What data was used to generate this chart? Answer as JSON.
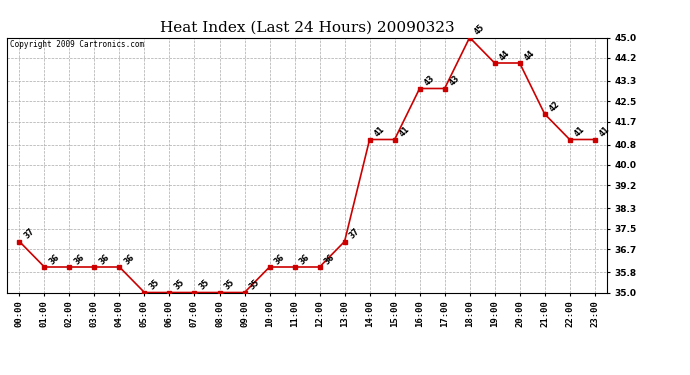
{
  "title": "Heat Index (Last 24 Hours) 20090323",
  "copyright": "Copyright 2009 Cartronics.com",
  "hours": [
    "00:00",
    "01:00",
    "02:00",
    "03:00",
    "04:00",
    "05:00",
    "06:00",
    "07:00",
    "08:00",
    "09:00",
    "10:00",
    "11:00",
    "12:00",
    "13:00",
    "14:00",
    "15:00",
    "16:00",
    "17:00",
    "18:00",
    "19:00",
    "20:00",
    "21:00",
    "22:00",
    "23:00"
  ],
  "values": [
    37,
    36,
    36,
    36,
    36,
    35,
    35,
    35,
    35,
    35,
    36,
    36,
    36,
    37,
    41,
    41,
    43,
    43,
    45,
    44,
    44,
    42,
    41,
    41
  ],
  "ylim": [
    35.0,
    45.0
  ],
  "yticks": [
    35.0,
    35.8,
    36.7,
    37.5,
    38.3,
    39.2,
    40.0,
    40.8,
    41.7,
    42.5,
    43.3,
    44.2,
    45.0
  ],
  "line_color": "#cc0000",
  "marker_color": "#cc0000",
  "bg_color": "#ffffff",
  "plot_bg_color": "#ffffff",
  "grid_color": "#aaaaaa",
  "title_fontsize": 11,
  "label_fontsize": 6.5,
  "annot_fontsize": 5.5,
  "copyright_fontsize": 5.5
}
